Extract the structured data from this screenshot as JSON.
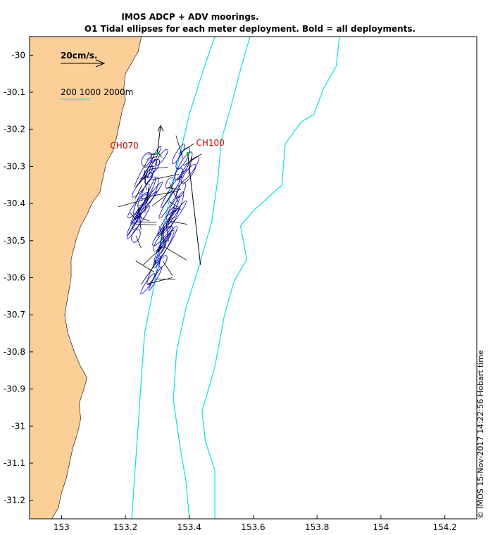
{
  "figure": {
    "title_line1": "IMOS ADCP + ADV moorings.",
    "title_line2": "O1 Tidal ellipses for each meter deployment. Bold = all deployments.",
    "timestamp": "© IMOS 15-Nov-2017 14:22:56 Hobart time",
    "scale_label": "20cm/s.",
    "isobath_legend": "200 1000 2000m"
  },
  "colors": {
    "land": "#fccf98",
    "isobath": "#00e5e5",
    "ellipse": "#0000cc",
    "vector": "#000000",
    "mooring_label": "#cc0000",
    "mooring_marker": "#00cc00"
  },
  "chart_data": {
    "type": "map",
    "title": "IMOS ADCP + ADV moorings. O1 Tidal ellipses for each meter deployment. Bold = all deployments.",
    "xlim": [
      152.9,
      154.3
    ],
    "ylim": [
      -31.25,
      -29.95
    ],
    "x_ticks": [
      "153",
      "153.2",
      "153.4",
      "153.6",
      "153.8",
      "154",
      "154.2"
    ],
    "y_ticks": [
      "-30",
      "-30.1",
      "-30.2",
      "-30.3",
      "-30.4",
      "-30.5",
      "-30.6",
      "-30.7",
      "-30.8",
      "-30.9",
      "-31",
      "-31.1",
      "-31.2"
    ],
    "moorings": [
      {
        "name": "CH070",
        "lon": 153.3,
        "lat": -30.265
      },
      {
        "name": "CH100",
        "lon": 153.395,
        "lat": -30.265
      }
    ],
    "isobaths_m": [
      200,
      1000,
      2000
    ],
    "scale_vector_cm_s": 20,
    "coastline": [
      [
        153.25,
        -29.95
      ],
      [
        153.24,
        -29.99
      ],
      [
        153.22,
        -30.02
      ],
      [
        153.2,
        -30.05
      ],
      [
        153.195,
        -30.09
      ],
      [
        153.2,
        -30.12
      ],
      [
        153.19,
        -30.15
      ],
      [
        153.18,
        -30.19
      ],
      [
        153.17,
        -30.23
      ],
      [
        153.16,
        -30.26
      ],
      [
        153.14,
        -30.29
      ],
      [
        153.13,
        -30.33
      ],
      [
        153.12,
        -30.37
      ],
      [
        153.095,
        -30.4
      ],
      [
        153.08,
        -30.43
      ],
      [
        153.06,
        -30.46
      ],
      [
        153.045,
        -30.5
      ],
      [
        153.03,
        -30.55
      ],
      [
        153.03,
        -30.6
      ],
      [
        153.02,
        -30.65
      ],
      [
        153.01,
        -30.7
      ],
      [
        153.02,
        -30.75
      ],
      [
        153.04,
        -30.8
      ],
      [
        153.06,
        -30.84
      ],
      [
        153.08,
        -30.87
      ],
      [
        153.07,
        -30.9
      ],
      [
        153.055,
        -30.94
      ],
      [
        153.06,
        -30.98
      ],
      [
        153.05,
        -31.02
      ],
      [
        153.035,
        -31.06
      ],
      [
        153.025,
        -31.1
      ],
      [
        153.015,
        -31.14
      ],
      [
        153.0,
        -31.18
      ],
      [
        152.99,
        -31.22
      ],
      [
        152.97,
        -31.25
      ]
    ],
    "isobath_200": [
      [
        153.48,
        -29.95
      ],
      [
        153.44,
        -30.05
      ],
      [
        153.4,
        -30.16
      ],
      [
        153.37,
        -30.27
      ],
      [
        153.34,
        -30.38
      ],
      [
        153.31,
        -30.5
      ],
      [
        153.29,
        -30.62
      ],
      [
        153.26,
        -30.75
      ],
      [
        153.25,
        -30.87
      ],
      [
        153.24,
        -31.0
      ],
      [
        153.23,
        -31.12
      ],
      [
        153.22,
        -31.25
      ]
    ],
    "isobath_1000": [
      [
        153.59,
        -29.95
      ],
      [
        153.56,
        -30.04
      ],
      [
        153.53,
        -30.14
      ],
      [
        153.5,
        -30.23
      ],
      [
        153.49,
        -30.33
      ],
      [
        153.47,
        -30.45
      ],
      [
        153.43,
        -30.57
      ],
      [
        153.39,
        -30.68
      ],
      [
        153.36,
        -30.8
      ],
      [
        153.35,
        -30.93
      ],
      [
        153.37,
        -31.05
      ],
      [
        153.39,
        -31.15
      ],
      [
        153.4,
        -31.25
      ]
    ],
    "isobath_2000": [
      [
        153.87,
        -29.95
      ],
      [
        153.86,
        -30.03
      ],
      [
        153.82,
        -30.09
      ],
      [
        153.79,
        -30.16
      ],
      [
        153.75,
        -30.18
      ],
      [
        153.7,
        -30.24
      ],
      [
        153.69,
        -30.35
      ],
      [
        153.6,
        -30.42
      ],
      [
        153.56,
        -30.46
      ],
      [
        153.58,
        -30.55
      ],
      [
        153.54,
        -30.61
      ],
      [
        153.51,
        -30.7
      ],
      [
        153.48,
        -30.84
      ],
      [
        153.44,
        -30.96
      ],
      [
        153.45,
        -31.04
      ],
      [
        153.48,
        -31.12
      ],
      [
        153.48,
        -31.25
      ]
    ],
    "ellipse_bundles": [
      {
        "mooring": "CH070",
        "count": 22,
        "lon_start": 153.297,
        "lat_start": -30.27,
        "lon_end": 153.24,
        "lat_end": -30.47
      },
      {
        "mooring": "CH100",
        "count": 26,
        "lon_start": 153.39,
        "lat_start": -30.27,
        "lon_end": 153.29,
        "lat_end": -30.6
      }
    ],
    "long_vectors": [
      {
        "mooring": "CH070",
        "lon_end": 153.31,
        "lat_end": -30.19
      },
      {
        "mooring": "CH100",
        "lon_end": 153.435,
        "lat_end": -30.565
      }
    ]
  }
}
